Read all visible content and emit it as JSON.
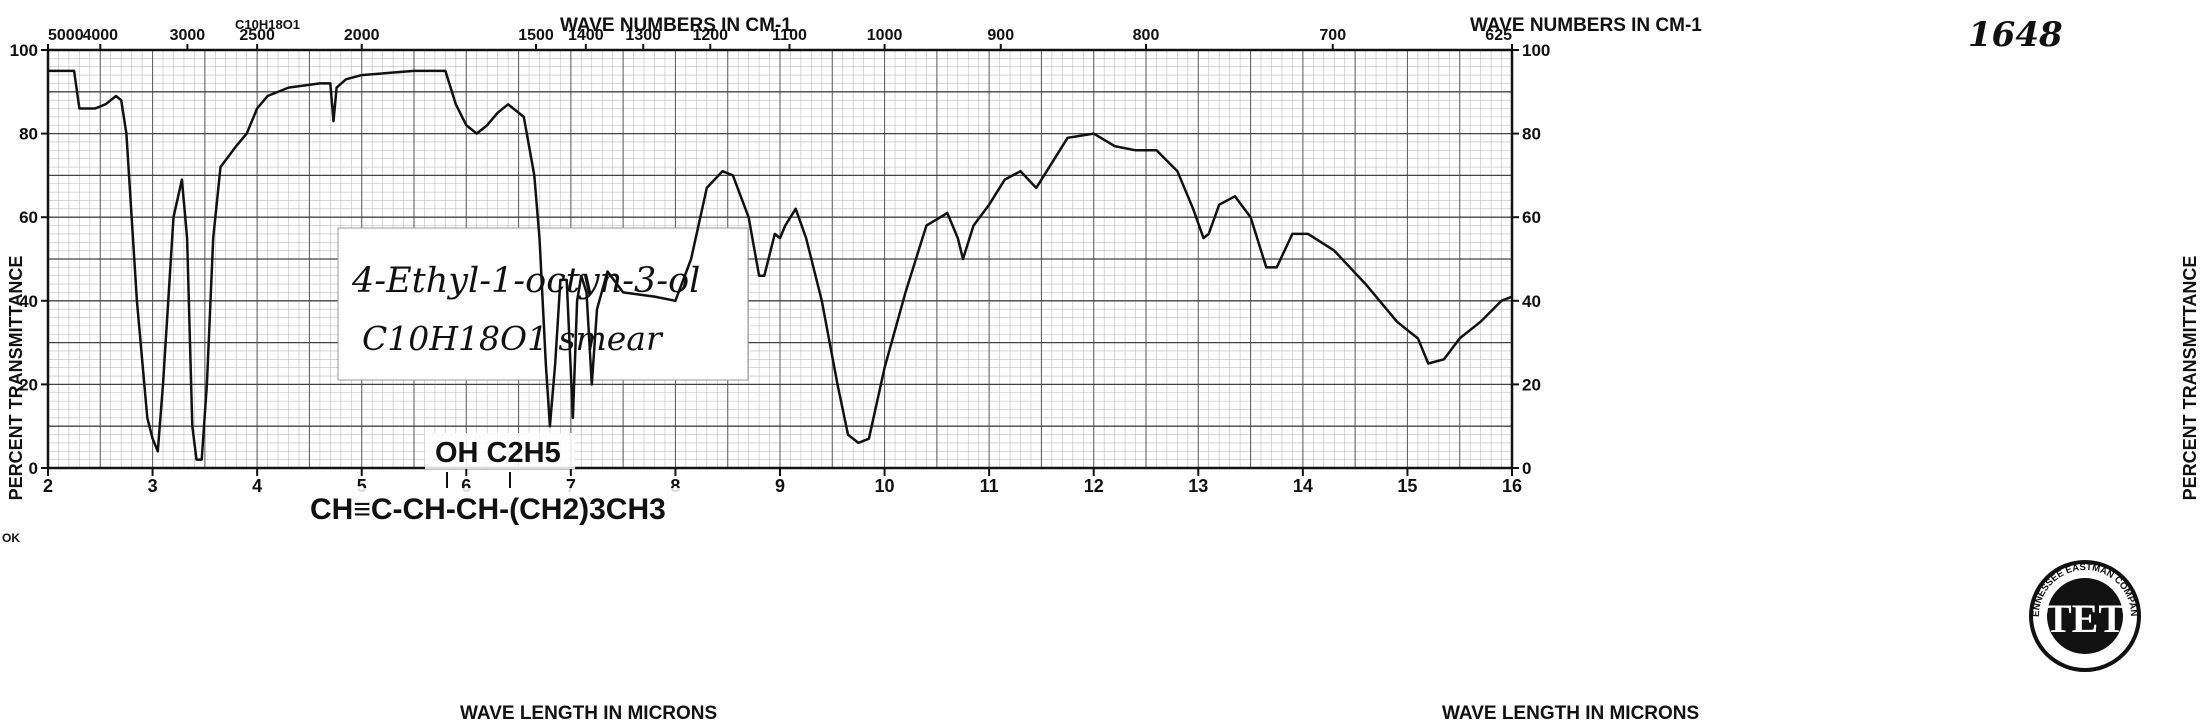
{
  "chart_data": {
    "type": "line",
    "title": "",
    "sheet_number": "1648",
    "corner_formula": "C10H18O1",
    "top_axis_label": "WAVE NUMBERS IN CM-1",
    "top_ticks": [
      {
        "label": "5000",
        "x": 2.0
      },
      {
        "label": "4000",
        "x": 2.5
      },
      {
        "label": "3000",
        "x": 3.333
      },
      {
        "label": "2500",
        "x": 4.0
      },
      {
        "label": "2000",
        "x": 5.0
      },
      {
        "label": "1500",
        "x": 6.667
      },
      {
        "label": "1400",
        "x": 7.143
      },
      {
        "label": "1300",
        "x": 7.692
      },
      {
        "label": "1200",
        "x": 8.333
      },
      {
        "label": "1100",
        "x": 9.091
      },
      {
        "label": "1000",
        "x": 10.0
      },
      {
        "label": "900",
        "x": 11.111
      },
      {
        "label": "800",
        "x": 12.5
      },
      {
        "label": "700",
        "x": 14.286
      },
      {
        "label": "625",
        "x": 16.0
      }
    ],
    "xlabel": "WAVE LENGTH IN MICRONS",
    "ylabel": "PERCENT TRANSMITTANCE",
    "xlim": [
      2,
      16
    ],
    "ylim": [
      0,
      100
    ],
    "x_ticks": [
      "2",
      "3",
      "4",
      "5",
      "6",
      "7",
      "8",
      "9",
      "10",
      "11",
      "12",
      "13",
      "14",
      "15",
      "16"
    ],
    "y_ticks": [
      "0",
      "20",
      "40",
      "60",
      "80",
      "100"
    ],
    "left_margin_mark": "OK",
    "compound": "4-Ethyl-1-octyn-3-ol",
    "formula_label": "C10H18O1 smear",
    "structure": {
      "top": "OH C2H5",
      "bottom": "CH≡C-CH-CH-(CH2)3CH3"
    },
    "logo": {
      "text": "TET",
      "ring_text": "TENNESSEE EASTMAN COMPANY"
    },
    "series": [
      {
        "points": [
          [
            2.0,
            95
          ],
          [
            2.25,
            95
          ],
          [
            2.3,
            86
          ],
          [
            2.45,
            86
          ],
          [
            2.55,
            87
          ],
          [
            2.65,
            89
          ],
          [
            2.7,
            88
          ],
          [
            2.75,
            80
          ],
          [
            2.85,
            40
          ],
          [
            2.95,
            12
          ],
          [
            3.0,
            7
          ],
          [
            3.05,
            4
          ],
          [
            3.1,
            20
          ],
          [
            3.2,
            60
          ],
          [
            3.28,
            69
          ],
          [
            3.33,
            55
          ],
          [
            3.38,
            10
          ],
          [
            3.42,
            2
          ],
          [
            3.47,
            2
          ],
          [
            3.52,
            20
          ],
          [
            3.58,
            55
          ],
          [
            3.65,
            72
          ],
          [
            3.8,
            77
          ],
          [
            3.9,
            80
          ],
          [
            4.0,
            86
          ],
          [
            4.1,
            89
          ],
          [
            4.3,
            91
          ],
          [
            4.6,
            92
          ],
          [
            4.7,
            92
          ],
          [
            4.73,
            83
          ],
          [
            4.76,
            91
          ],
          [
            4.85,
            93
          ],
          [
            5.0,
            94
          ],
          [
            5.5,
            95
          ],
          [
            5.8,
            95
          ],
          [
            5.9,
            87
          ],
          [
            6.0,
            82
          ],
          [
            6.1,
            80
          ],
          [
            6.2,
            82
          ],
          [
            6.3,
            85
          ],
          [
            6.4,
            87
          ],
          [
            6.55,
            84
          ],
          [
            6.65,
            70
          ],
          [
            6.7,
            55
          ],
          [
            6.76,
            25
          ],
          [
            6.8,
            10
          ],
          [
            6.85,
            25
          ],
          [
            6.9,
            45
          ],
          [
            6.96,
            45
          ],
          [
            7.02,
            12
          ],
          [
            7.06,
            40
          ],
          [
            7.1,
            46
          ],
          [
            7.15,
            42
          ],
          [
            7.2,
            20
          ],
          [
            7.25,
            38
          ],
          [
            7.35,
            47
          ],
          [
            7.5,
            42
          ],
          [
            7.8,
            41
          ],
          [
            8.0,
            40
          ],
          [
            8.15,
            50
          ],
          [
            8.3,
            67
          ],
          [
            8.45,
            71
          ],
          [
            8.55,
            70
          ],
          [
            8.7,
            60
          ],
          [
            8.8,
            46
          ],
          [
            8.85,
            46
          ],
          [
            8.95,
            56
          ],
          [
            9.0,
            55
          ],
          [
            9.05,
            58
          ],
          [
            9.15,
            62
          ],
          [
            9.25,
            55
          ],
          [
            9.4,
            40
          ],
          [
            9.55,
            20
          ],
          [
            9.65,
            8
          ],
          [
            9.75,
            6
          ],
          [
            9.85,
            7
          ],
          [
            10.0,
            24
          ],
          [
            10.2,
            42
          ],
          [
            10.4,
            58
          ],
          [
            10.6,
            61
          ],
          [
            10.7,
            55
          ],
          [
            10.75,
            50
          ],
          [
            10.85,
            58
          ],
          [
            11.0,
            63
          ],
          [
            11.15,
            69
          ],
          [
            11.3,
            71
          ],
          [
            11.45,
            67
          ],
          [
            11.6,
            73
          ],
          [
            11.75,
            79
          ],
          [
            12.0,
            80
          ],
          [
            12.2,
            77
          ],
          [
            12.4,
            76
          ],
          [
            12.6,
            76
          ],
          [
            12.8,
            71
          ],
          [
            12.95,
            62
          ],
          [
            13.05,
            55
          ],
          [
            13.1,
            56
          ],
          [
            13.2,
            63
          ],
          [
            13.35,
            65
          ],
          [
            13.5,
            60
          ],
          [
            13.65,
            48
          ],
          [
            13.75,
            48
          ],
          [
            13.9,
            56
          ],
          [
            14.05,
            56
          ],
          [
            14.3,
            52
          ],
          [
            14.6,
            44
          ],
          [
            14.9,
            35
          ],
          [
            15.0,
            33
          ],
          [
            15.1,
            31
          ],
          [
            15.2,
            25
          ],
          [
            15.35,
            26
          ],
          [
            15.5,
            31
          ],
          [
            15.7,
            35
          ],
          [
            15.9,
            40
          ],
          [
            16.0,
            41
          ]
        ]
      }
    ]
  }
}
